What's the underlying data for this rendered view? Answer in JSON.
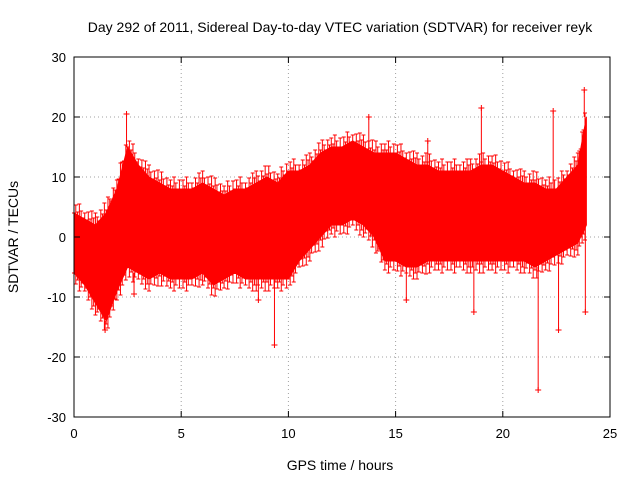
{
  "chart_data": {
    "type": "scatter",
    "title": "Day 292 of 2011, Sidereal Day-to-day VTEC variation (SDTVAR) for receiver reyk",
    "xlabel": "GPS time / hours",
    "ylabel": "SDTVAR / TECUs",
    "xlim": [
      0,
      25
    ],
    "ylim": [
      -30,
      30
    ],
    "xticks": [
      0,
      5,
      10,
      15,
      20,
      25
    ],
    "yticks": [
      -30,
      -20,
      -10,
      0,
      10,
      20,
      30
    ],
    "grid": true,
    "marker": "plus-with-errorbars",
    "series": [
      {
        "name": "SDTVAR",
        "color": "#ff0000",
        "x": [
          0.0,
          0.5,
          1.0,
          1.5,
          2.0,
          2.5,
          3.0,
          3.5,
          4.0,
          4.5,
          5.0,
          5.5,
          6.0,
          6.5,
          7.0,
          7.5,
          8.0,
          8.5,
          9.0,
          9.5,
          10.0,
          10.5,
          11.0,
          11.5,
          12.0,
          12.5,
          13.0,
          13.5,
          14.0,
          14.5,
          15.0,
          15.5,
          16.0,
          16.5,
          17.0,
          17.5,
          18.0,
          18.5,
          19.0,
          19.5,
          20.0,
          20.5,
          21.0,
          21.5,
          22.0,
          22.5,
          23.0,
          23.5,
          23.9
        ],
        "upper": [
          4,
          3,
          2,
          4,
          8,
          15,
          12,
          10,
          9,
          8,
          8,
          8,
          9,
          8,
          7,
          8,
          8,
          9,
          10,
          9,
          11,
          11,
          12,
          14,
          15,
          15,
          16,
          15,
          14,
          14,
          14,
          13,
          12,
          12,
          11,
          11,
          11,
          11,
          12,
          12,
          11,
          10,
          9,
          9,
          8,
          8,
          10,
          12,
          20
        ],
        "lower": [
          -6,
          -8,
          -11,
          -14,
          -9,
          -5,
          -6,
          -7,
          -6,
          -7,
          -7,
          -7,
          -6,
          -8,
          -7,
          -6,
          -7,
          -7,
          -7,
          -7,
          -7,
          -4,
          -2,
          0,
          2,
          2,
          3,
          2,
          0,
          -4,
          -4,
          -5,
          -5,
          -4,
          -4,
          -4,
          -4,
          -4,
          -4,
          -4,
          -4,
          -4,
          -4,
          -5,
          -4,
          -3,
          -2,
          -1,
          2
        ],
        "spikes": [
          {
            "x": 2.45,
            "y": 20.5
          },
          {
            "x": 1.45,
            "y": -15.5
          },
          {
            "x": 9.35,
            "y": -18.0
          },
          {
            "x": 13.75,
            "y": 20.0
          },
          {
            "x": 15.5,
            "y": -10.5
          },
          {
            "x": 18.65,
            "y": -12.5
          },
          {
            "x": 19.0,
            "y": 21.5
          },
          {
            "x": 21.65,
            "y": -25.5
          },
          {
            "x": 22.35,
            "y": 21.0
          },
          {
            "x": 22.6,
            "y": -15.5
          },
          {
            "x": 23.8,
            "y": 24.5
          },
          {
            "x": 23.85,
            "y": -12.5
          },
          {
            "x": 16.5,
            "y": 16.0
          },
          {
            "x": 2.8,
            "y": -9.5
          },
          {
            "x": 8.6,
            "y": -10.5
          }
        ]
      }
    ]
  }
}
